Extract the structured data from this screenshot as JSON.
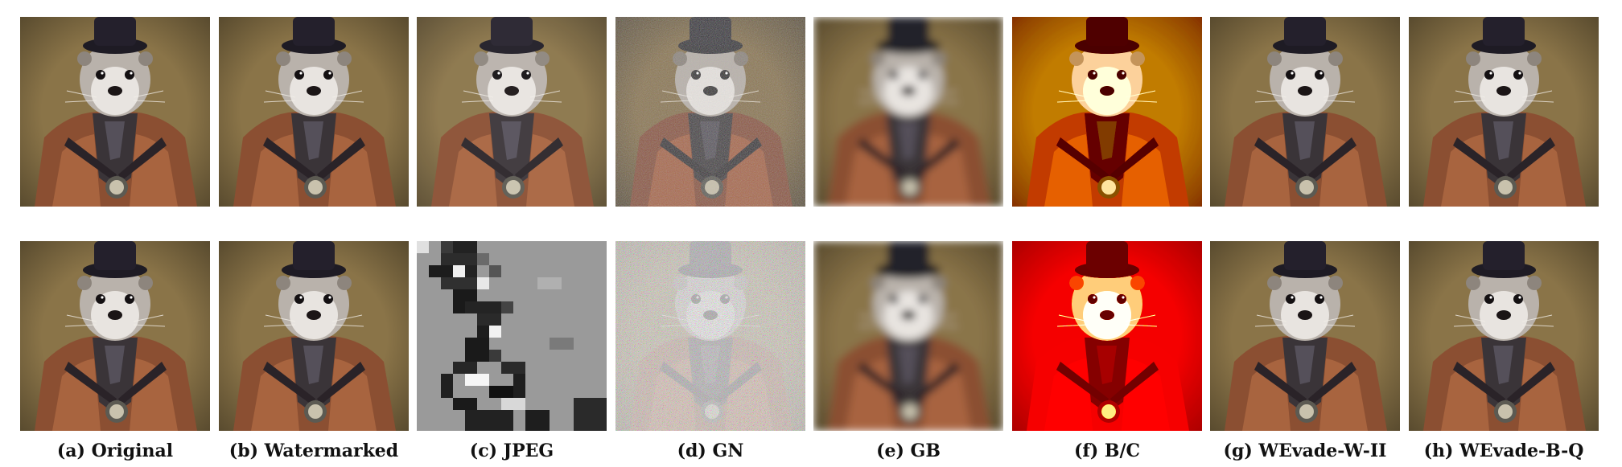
{
  "captions": [
    "(a) Original",
    "(b) Watermarked",
    "(c) JPEG",
    "(d) GN",
    "(e) GB",
    "(f) B/C",
    "(g) WEvade-W-II",
    "(h) WEvade-B-Q"
  ],
  "colors": {
    "background_olive": "#8a7448",
    "jacket_brown": "#8b4f32",
    "hat_dark": "#1e1b24",
    "face_light": "#e8e4e0",
    "bc_red": "#c21a0c",
    "bc_yellow": "#f6c11e",
    "jpeg_gray": "#9a9a9a"
  }
}
